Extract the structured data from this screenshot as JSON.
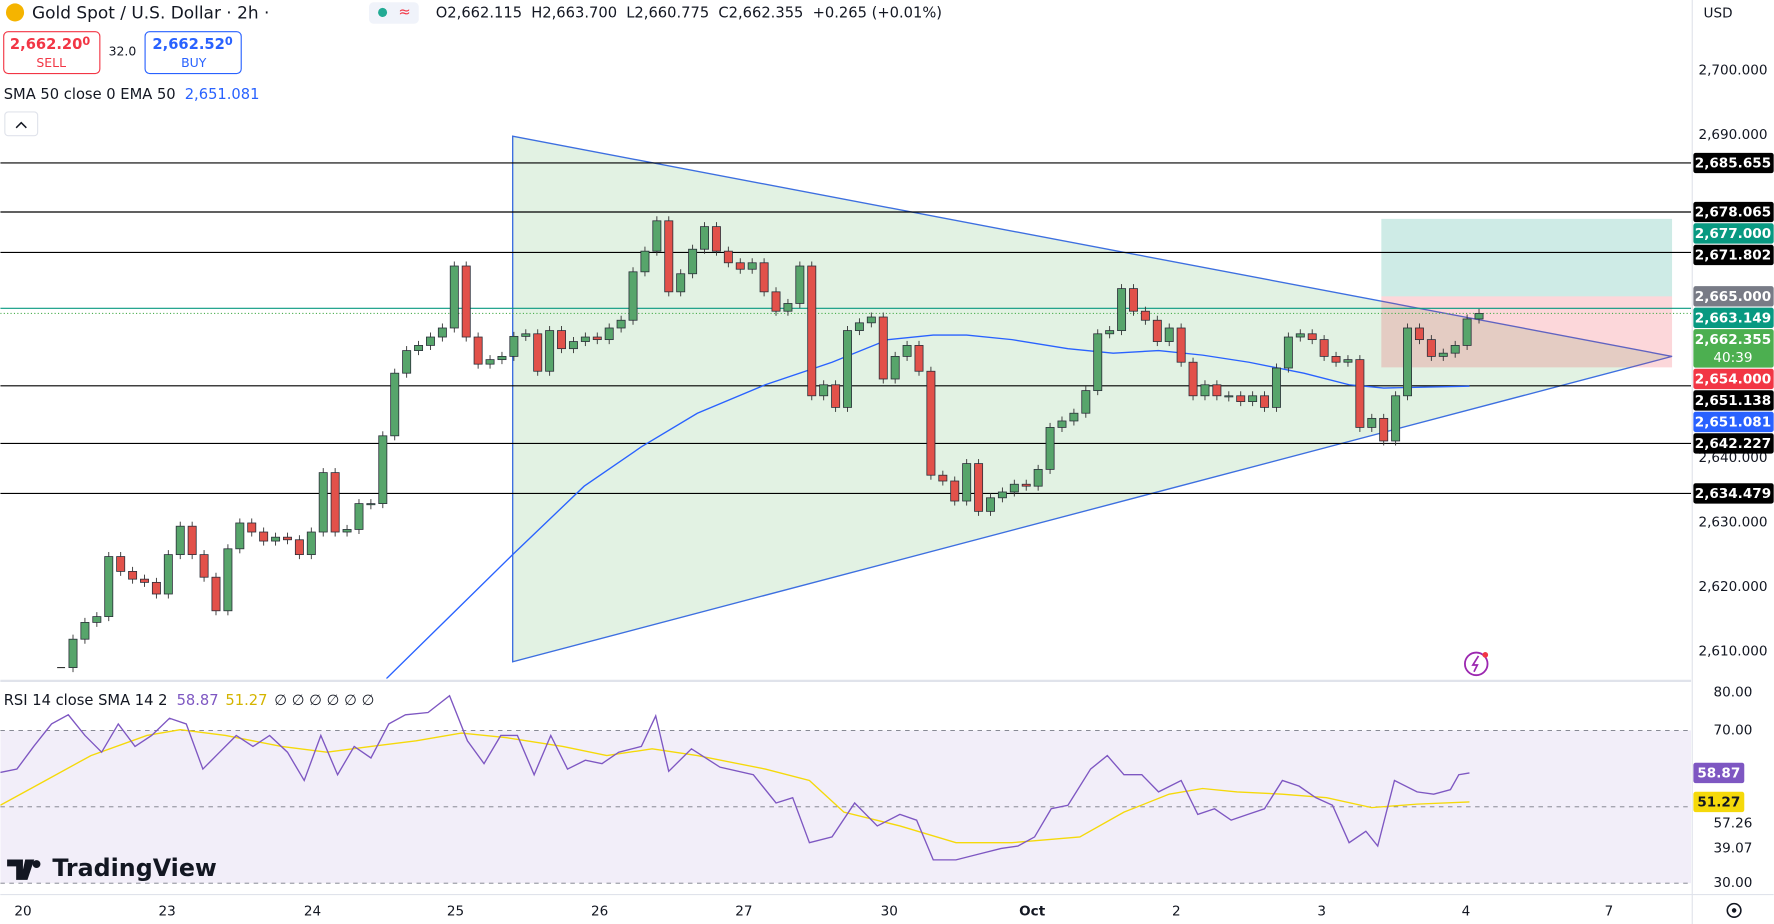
{
  "header": {
    "ohlc": [
      {
        "key": "O",
        "value": "2,662.115"
      },
      {
        "key": "H",
        "value": "2,663.700"
      },
      {
        "key": "L",
        "value": "2,660.775"
      },
      {
        "key": "C",
        "value": "2,662.355"
      }
    ],
    "change": "+0.265 (+0.01%)",
    "sell": {
      "price": "2,662.20",
      "pip": "0",
      "label": "SELL"
    },
    "spread": "32.0",
    "buy": {
      "price": "2,662.52",
      "pip": "0",
      "label": "BUY"
    },
    "currency": "USD",
    "brand": "TradingView"
  },
  "chart_data": [
    {
      "type": "candlestick",
      "title": "Gold Spot / U.S. Dollar · 2h ·",
      "xlim": [
        -5.1,
        136.8
      ],
      "xticks": [
        {
          "value": -3.2,
          "label": "20"
        },
        {
          "value": 8.9,
          "label": "23"
        },
        {
          "value": 21.1,
          "label": "24"
        },
        {
          "value": 33.1,
          "label": "25"
        },
        {
          "value": 45.2,
          "label": "26"
        },
        {
          "value": 57.3,
          "label": "27"
        },
        {
          "value": 69.5,
          "label": "30"
        },
        {
          "value": 81.5,
          "label": "Oct"
        },
        {
          "value": 93.6,
          "label": "2"
        },
        {
          "value": 105.8,
          "label": "3"
        },
        {
          "value": 117.9,
          "label": "4"
        },
        {
          "value": 129.9,
          "label": "7"
        }
      ],
      "ylim": [
        2605.8,
        2710.9
      ],
      "yticks": [
        {
          "value": 2700,
          "label": "2,700.000"
        },
        {
          "value": 2690,
          "label": "2,690.000"
        },
        {
          "value": 2640,
          "label": "2,640.000"
        },
        {
          "value": 2630,
          "label": "2,630.000"
        },
        {
          "value": 2620,
          "label": "2,620.000"
        },
        {
          "value": 2610,
          "label": "2,610.000"
        }
      ],
      "up_color": "#57a56b",
      "down_color": "#e2514a",
      "close": [
        2607.5,
        2611.9,
        2614.5,
        2615.4,
        2624.7,
        2622.4,
        2621.2,
        2620.7,
        2618.9,
        2625.0,
        2629.4,
        2625.0,
        2621.5,
        2616.3,
        2625.9,
        2629.9,
        2628.5,
        2627.1,
        2627.7,
        2627.3,
        2625.0,
        2628.5,
        2637.7,
        2628.5,
        2628.9,
        2632.9,
        2632.9,
        2643.4,
        2653.1,
        2656.6,
        2657.4,
        2658.7,
        2660.1,
        2669.7,
        2658.7,
        2654.5,
        2655.2,
        2655.7,
        2658.8,
        2659.2,
        2653.4,
        2659.7,
        2656.9,
        2658.0,
        2658.7,
        2658.3,
        2660.1,
        2661.3,
        2668.8,
        2672.0,
        2676.7,
        2665.7,
        2668.5,
        2672.3,
        2675.8,
        2672.0,
        2670.2,
        2669.2,
        2670.2,
        2665.7,
        2662.7,
        2663.9,
        2669.7,
        2649.6,
        2651.3,
        2647.8,
        2659.7,
        2660.9,
        2661.8,
        2652.2,
        2655.7,
        2657.4,
        2653.4,
        2637.3,
        2636.4,
        2633.3,
        2639.1,
        2631.7,
        2633.8,
        2634.7,
        2635.9,
        2635.6,
        2638.2,
        2644.7,
        2645.7,
        2646.9,
        2650.4,
        2659.2,
        2659.7,
        2666.2,
        2662.7,
        2661.3,
        2658.0,
        2660.1,
        2654.8,
        2649.6,
        2651.3,
        2649.6,
        2649.6,
        2648.7,
        2649.6,
        2647.8,
        2653.9,
        2658.7,
        2659.2,
        2658.3,
        2655.7,
        2654.8,
        2655.2,
        2644.7,
        2646.1,
        2642.6,
        2649.6,
        2660.1,
        2658.3,
        2655.7,
        2656.2,
        2657.4,
        2661.5,
        2662.355
      ],
      "ema": {
        "name": "SMA 50 close 0 EMA 50",
        "color": "#2962ff",
        "value_label": "2,651.081",
        "x": [
          27.3,
          32.6,
          37.9,
          43.9,
          48.7,
          53.4,
          59.1,
          64.7,
          69.4,
          73.2,
          76.0,
          79.8,
          84.5,
          88.3,
          92.1,
          95.8,
          99.7,
          104.3,
          108.1,
          111.0,
          118.2
        ],
        "values": [
          2605.8,
          2615.4,
          2625.0,
          2635.6,
          2641.7,
          2646.9,
          2651.3,
          2654.8,
          2658.3,
          2659.0,
          2659.0,
          2658.3,
          2656.9,
          2656.2,
          2656.6,
          2655.9,
          2654.8,
          2653.1,
          2651.3,
          2650.8,
          2651.081
        ]
      },
      "levels": [
        {
          "value": 2685.655,
          "label": "2,685.655",
          "color": "#000000"
        },
        {
          "value": 2678.065,
          "label": "2,678.065",
          "color": "#000000"
        },
        {
          "value": 2671.802,
          "label": "2,671.802",
          "color": "#000000"
        },
        {
          "value": 2663.149,
          "label": "2,663.149",
          "color": "#089981"
        },
        {
          "value": 2651.138,
          "label": "2,651.138",
          "color": "#000000"
        },
        {
          "value": 2642.227,
          "label": "2,642.227",
          "color": "#000000"
        },
        {
          "value": 2634.479,
          "label": "2,634.479",
          "color": "#000000"
        }
      ],
      "last": {
        "value": 2662.355,
        "label": "2,662.355",
        "countdown": "40:39",
        "color": "#4caf50"
      },
      "position": {
        "x": [
          110.8,
          135.2
        ],
        "take_profit": 2677,
        "take_profit_label": "2,677.000",
        "entry": 2665,
        "entry_label": "2,665.000",
        "stop_loss": 2654,
        "stop_loss_label": "2,654.000"
      },
      "triangle": {
        "x": [
          37.9,
          37.9,
          135.2
        ],
        "y": [
          2689.8,
          2608.4,
          2655.7
        ]
      }
    },
    {
      "type": "line",
      "title": "RSI 14 close SMA 14 2",
      "empty_values": "∅ ∅ ∅ ∅ ∅ ∅",
      "ylim": [
        27.3,
        82.7
      ],
      "yticks": [
        {
          "value": 80,
          "label": "80.00"
        },
        {
          "value": 70,
          "label": "70.00"
        },
        {
          "value": 57.26,
          "label": "57.26"
        },
        {
          "value": 39.07,
          "label": "39.07"
        },
        {
          "value": 30,
          "label": "30.00"
        }
      ],
      "bands": [
        30,
        50,
        70
      ],
      "series": [
        {
          "color": "#7e57c2",
          "value_label": "58.87",
          "x": [
            -5.1,
            -3.7,
            -2.3,
            -0.8,
            0.6,
            2.0,
            3.4,
            4.8,
            6.2,
            7.6,
            9.1,
            10.5,
            11.9,
            13.3,
            14.7,
            16.1,
            17.5,
            19.0,
            20.4,
            21.8,
            23.2,
            24.6,
            26.0,
            27.5,
            28.9,
            30.8,
            32.6,
            34.1,
            35.5,
            36.9,
            38.3,
            39.7,
            41.1,
            42.5,
            44.0,
            45.4,
            46.8,
            48.7,
            49.9,
            51.0,
            52.9,
            55.3,
            58.1,
            60.0,
            61.4,
            62.8,
            64.7,
            66.6,
            68.5,
            70.4,
            71.8,
            73.2,
            75.1,
            77.0,
            78.9,
            80.3,
            81.7,
            83.1,
            84.5,
            86.4,
            87.8,
            89.2,
            90.7,
            92.1,
            94.0,
            95.4,
            96.8,
            98.2,
            99.6,
            101.0,
            102.5,
            103.9,
            105.3,
            106.7,
            108.1,
            109.5,
            110.5,
            111.9,
            113.8,
            115.2,
            116.6,
            117.3,
            118.2
          ],
          "values": [
            59.0,
            59.9,
            65.8,
            71.7,
            74.1,
            68.7,
            64.3,
            71.7,
            65.8,
            68.7,
            73.2,
            71.7,
            59.9,
            64.3,
            68.7,
            65.8,
            68.7,
            64.3,
            56.9,
            68.7,
            58.4,
            65.8,
            62.8,
            71.7,
            74.1,
            74.7,
            79.1,
            67.3,
            61.3,
            68.7,
            68.7,
            58.4,
            68.7,
            59.9,
            62.2,
            61.3,
            64.3,
            65.8,
            73.8,
            59.3,
            65.2,
            60.4,
            58.4,
            51.0,
            52.4,
            40.6,
            42.1,
            51.0,
            45.0,
            48.0,
            46.5,
            36.1,
            36.1,
            37.6,
            39.1,
            39.7,
            42.1,
            49.5,
            50.4,
            59.9,
            63.4,
            58.4,
            58.4,
            53.9,
            56.9,
            48.0,
            49.5,
            46.5,
            48.0,
            49.5,
            56.9,
            55.4,
            52.4,
            50.4,
            40.6,
            43.6,
            39.7,
            56.9,
            53.9,
            53.3,
            54.5,
            58.4,
            58.87
          ]
        },
        {
          "color": "#f5d90a",
          "value_label": "51.27",
          "x": [
            -5.1,
            -1.3,
            2.5,
            7.2,
            10.0,
            13.8,
            18.5,
            22.3,
            26.0,
            29.8,
            33.6,
            37.4,
            42.1,
            45.8,
            49.6,
            53.4,
            59.1,
            62.8,
            65.7,
            70.4,
            75.1,
            79.8,
            85.5,
            89.2,
            93.0,
            95.8,
            98.7,
            102.5,
            106.2,
            110.0,
            113.8,
            118.2
          ],
          "values": [
            50.4,
            56.9,
            63.4,
            68.7,
            70.2,
            68.7,
            65.8,
            64.3,
            65.8,
            67.3,
            69.3,
            68.1,
            65.8,
            63.4,
            65.2,
            63.4,
            59.9,
            56.9,
            48.6,
            45.0,
            40.6,
            40.6,
            42.1,
            48.6,
            53.3,
            54.8,
            53.9,
            53.3,
            52.4,
            49.8,
            50.7,
            51.27
          ]
        }
      ]
    }
  ]
}
